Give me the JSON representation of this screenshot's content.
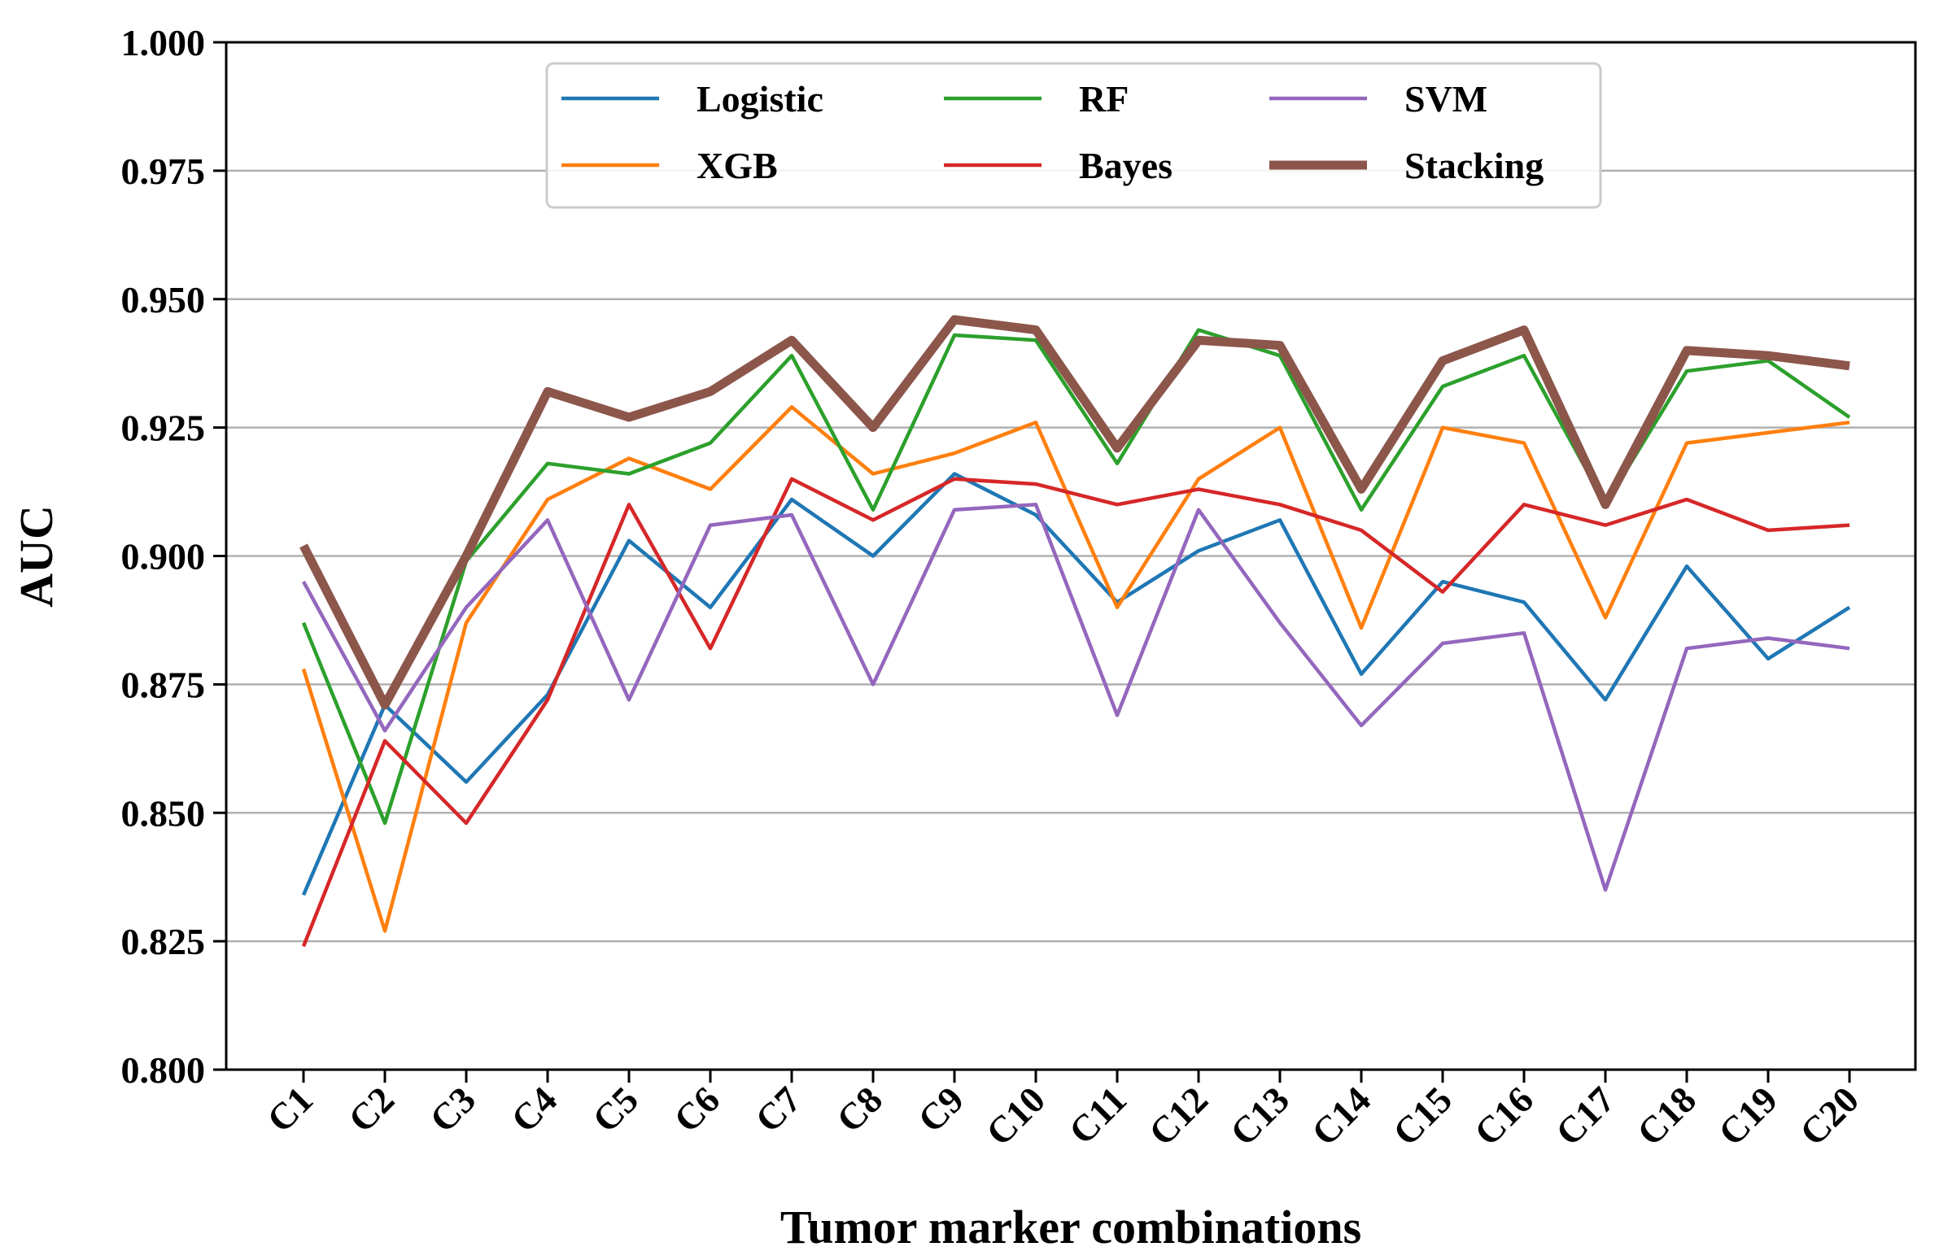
{
  "chart_data": {
    "type": "line",
    "xlabel": "Tumor marker combinations",
    "ylabel": "AUC",
    "ylim": [
      0.8,
      1.0
    ],
    "yticks": [
      "0.800",
      "0.825",
      "0.850",
      "0.875",
      "0.900",
      "0.925",
      "0.950",
      "0.975",
      "1.000"
    ],
    "grid": "horizontal",
    "legend_position": "top-center",
    "categories": [
      "C1",
      "C2",
      "C3",
      "C4",
      "C5",
      "C6",
      "C7",
      "C8",
      "C9",
      "C10",
      "C11",
      "C12",
      "C13",
      "C14",
      "C15",
      "C16",
      "C17",
      "C18",
      "C19",
      "C20"
    ],
    "series": [
      {
        "name": "Logistic",
        "color": "#1f77b4",
        "width": "thin",
        "values": [
          0.834,
          0.871,
          0.856,
          0.873,
          0.903,
          0.89,
          0.911,
          0.9,
          0.916,
          0.908,
          0.891,
          0.901,
          0.907,
          0.877,
          0.895,
          0.891,
          0.872,
          0.898,
          0.88,
          0.89
        ]
      },
      {
        "name": "XGB",
        "color": "#ff7f0e",
        "width": "thin",
        "values": [
          0.878,
          0.827,
          0.887,
          0.911,
          0.919,
          0.913,
          0.929,
          0.916,
          0.92,
          0.926,
          0.89,
          0.915,
          0.925,
          0.886,
          0.925,
          0.922,
          0.888,
          0.922,
          0.924,
          0.926
        ]
      },
      {
        "name": "RF",
        "color": "#2ca02c",
        "width": "thin",
        "values": [
          0.887,
          0.848,
          0.899,
          0.918,
          0.916,
          0.922,
          0.939,
          0.909,
          0.943,
          0.942,
          0.918,
          0.944,
          0.939,
          0.909,
          0.933,
          0.939,
          0.91,
          0.936,
          0.938,
          0.927
        ]
      },
      {
        "name": "Bayes",
        "color": "#d62728",
        "width": "thin",
        "values": [
          0.824,
          0.864,
          0.848,
          0.872,
          0.91,
          0.882,
          0.915,
          0.907,
          0.915,
          0.914,
          0.91,
          0.913,
          0.91,
          0.905,
          0.893,
          0.91,
          0.906,
          0.911,
          0.905,
          0.906
        ]
      },
      {
        "name": "SVM",
        "color": "#9467bd",
        "width": "thin",
        "values": [
          0.895,
          0.866,
          0.89,
          0.907,
          0.872,
          0.906,
          0.908,
          0.875,
          0.909,
          0.91,
          0.869,
          0.909,
          0.887,
          0.867,
          0.883,
          0.885,
          0.835,
          0.882,
          0.884,
          0.882
        ]
      },
      {
        "name": "Stacking",
        "color": "#8c564b",
        "width": "thick",
        "values": [
          0.902,
          0.871,
          0.9,
          0.932,
          0.927,
          0.932,
          0.942,
          0.925,
          0.946,
          0.944,
          0.921,
          0.942,
          0.941,
          0.913,
          0.938,
          0.944,
          0.91,
          0.94,
          0.939,
          0.937
        ]
      }
    ]
  }
}
